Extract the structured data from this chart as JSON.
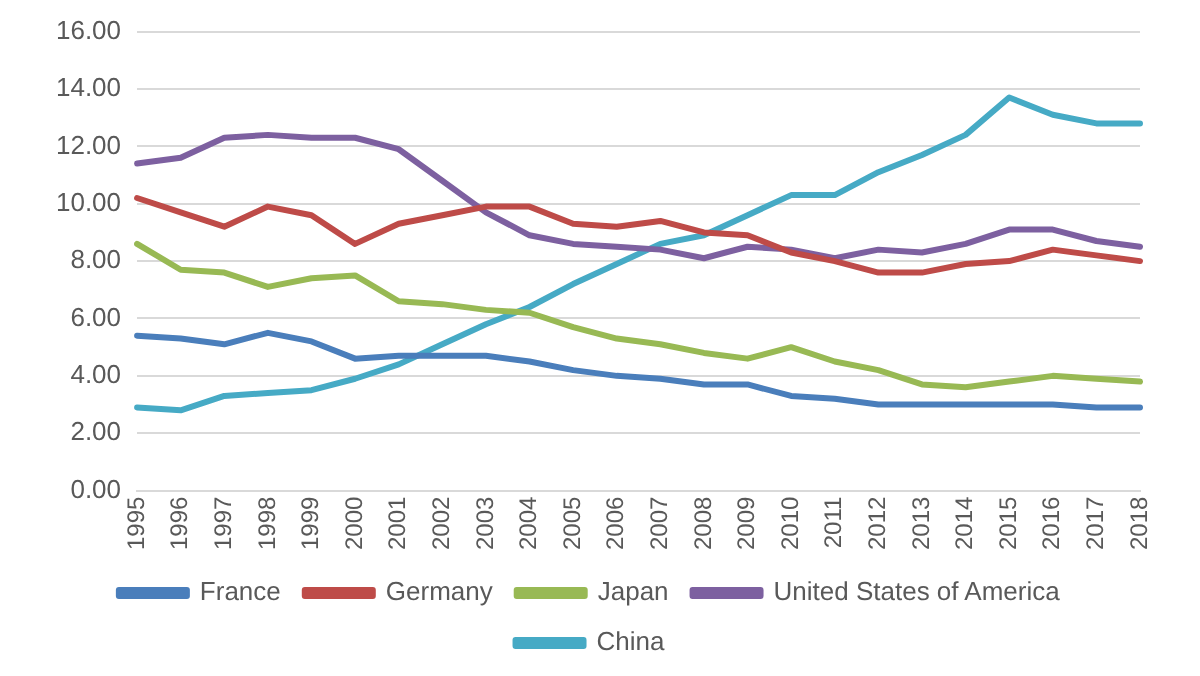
{
  "chart_data": {
    "type": "line",
    "categories": [
      "1995",
      "1996",
      "1997",
      "1998",
      "1999",
      "2000",
      "2001",
      "2002",
      "2003",
      "2004",
      "2005",
      "2006",
      "2007",
      "2008",
      "2009",
      "2010",
      "2011",
      "2012",
      "2013",
      "2014",
      "2015",
      "2016",
      "2017",
      "2018"
    ],
    "series": [
      {
        "name": "France",
        "color": "#4a7ebb",
        "values": [
          5.4,
          5.3,
          5.1,
          5.5,
          5.2,
          4.6,
          4.7,
          4.7,
          4.7,
          4.5,
          4.2,
          4.0,
          3.9,
          3.7,
          3.7,
          3.3,
          3.2,
          3.0,
          3.0,
          3.0,
          3.0,
          3.0,
          2.9,
          2.9
        ]
      },
      {
        "name": "Germany",
        "color": "#be4b48",
        "values": [
          10.2,
          9.7,
          9.2,
          9.9,
          9.6,
          8.6,
          9.3,
          9.6,
          9.9,
          9.9,
          9.3,
          9.2,
          9.4,
          9.0,
          8.9,
          8.3,
          8.0,
          7.6,
          7.6,
          7.9,
          8.0,
          8.4,
          8.2,
          8.0
        ]
      },
      {
        "name": "Japan",
        "color": "#98b954",
        "values": [
          8.6,
          7.7,
          7.6,
          7.1,
          7.4,
          7.5,
          6.6,
          6.5,
          6.3,
          6.2,
          5.7,
          5.3,
          5.1,
          4.8,
          4.6,
          5.0,
          4.5,
          4.2,
          3.7,
          3.6,
          3.8,
          4.0,
          3.9,
          3.8
        ]
      },
      {
        "name": "United States of America",
        "color": "#7d60a0",
        "values": [
          11.4,
          11.6,
          12.3,
          12.4,
          12.3,
          12.3,
          11.9,
          10.8,
          9.7,
          8.9,
          8.6,
          8.5,
          8.4,
          8.1,
          8.5,
          8.4,
          8.1,
          8.4,
          8.3,
          8.6,
          9.1,
          9.1,
          8.7,
          8.5
        ]
      },
      {
        "name": "China",
        "color": "#46aac5",
        "values": [
          2.9,
          2.8,
          3.3,
          3.4,
          3.5,
          3.9,
          4.4,
          5.1,
          5.8,
          6.4,
          7.2,
          7.9,
          8.6,
          8.9,
          9.6,
          10.3,
          10.3,
          11.1,
          11.7,
          12.4,
          13.7,
          13.1,
          12.8,
          12.8
        ]
      }
    ],
    "ylim": [
      0,
      16
    ],
    "yticks": [
      {
        "value": 0,
        "label": "0.00"
      },
      {
        "value": 2,
        "label": "2.00"
      },
      {
        "value": 4,
        "label": "4.00"
      },
      {
        "value": 6,
        "label": "6.00"
      },
      {
        "value": 8,
        "label": "8.00"
      },
      {
        "value": 10,
        "label": "10.00"
      },
      {
        "value": 12,
        "label": "12.00"
      },
      {
        "value": 14,
        "label": "14.00"
      },
      {
        "value": 16,
        "label": "16.00"
      }
    ],
    "grid": "y",
    "legend": "bottom",
    "marker": "none",
    "line_style": "solid"
  }
}
